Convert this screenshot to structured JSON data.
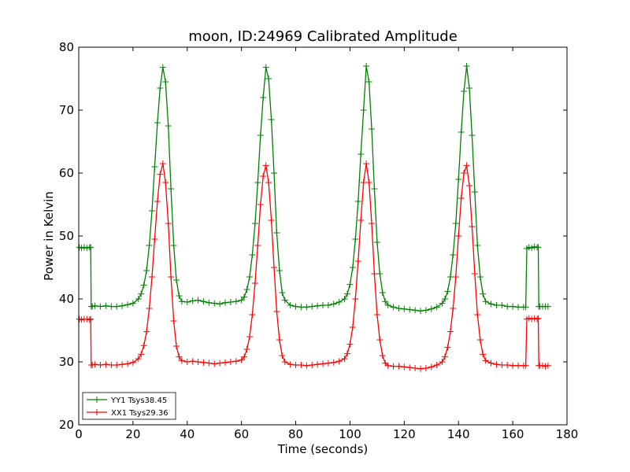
{
  "chart_data": {
    "type": "line",
    "title": "moon, ID:24969 Calibrated Amplitude",
    "xlabel": "Time (seconds)",
    "ylabel": "Power in Kelvin",
    "xlim": [
      0,
      180
    ],
    "ylim": [
      20,
      80
    ],
    "x_ticks": [
      "0",
      "20",
      "40",
      "60",
      "80",
      "100",
      "120",
      "140",
      "160",
      "180"
    ],
    "y_ticks": [
      "20",
      "30",
      "40",
      "50",
      "60",
      "70",
      "80"
    ],
    "grid": false,
    "legend_position": "lower-left",
    "marker": "plus",
    "series": [
      {
        "name": "YY1 Tsys38.45",
        "color": "#008000",
        "x": [
          0.2,
          1,
          2,
          3,
          4,
          4.4,
          4.6,
          5,
          6,
          8,
          10,
          12,
          14,
          16,
          18,
          20,
          22,
          23,
          24,
          25,
          26,
          27,
          28,
          29,
          30,
          31,
          32,
          33,
          34,
          35,
          36,
          37,
          38,
          40,
          42,
          44,
          46,
          48,
          50,
          52,
          54,
          56,
          58,
          60,
          61,
          62,
          63,
          64,
          65,
          66,
          67,
          68,
          69,
          70,
          71,
          72,
          73,
          74,
          75,
          76,
          78,
          80,
          82,
          84,
          86,
          88,
          90,
          92,
          94,
          96,
          98,
          99,
          100,
          101,
          102,
          103,
          104,
          105,
          106,
          107,
          108,
          109,
          110,
          111,
          112,
          113,
          114,
          116,
          118,
          120,
          122,
          124,
          126,
          128,
          130,
          132,
          134,
          135,
          136,
          137,
          138,
          139,
          140,
          141,
          142,
          143,
          144,
          145,
          146,
          147,
          148,
          149,
          150,
          152,
          154,
          156,
          158,
          160,
          162,
          164,
          164.8,
          165.2,
          166,
          167,
          168,
          169,
          169.4,
          169.6,
          170,
          171,
          172,
          173
        ],
        "values": [
          48.2,
          48.1,
          48.2,
          48.1,
          48.2,
          48.2,
          38.8,
          38.8,
          38.9,
          38.8,
          38.9,
          38.8,
          38.8,
          38.9,
          39.1,
          39.3,
          40.0,
          40.8,
          42.2,
          44.5,
          48.5,
          54.0,
          61.0,
          68.0,
          73.5,
          76.8,
          74.5,
          67.5,
          57.5,
          48.5,
          43.0,
          40.5,
          39.6,
          39.5,
          39.7,
          39.8,
          39.6,
          39.4,
          39.3,
          39.2,
          39.4,
          39.5,
          39.6,
          39.8,
          40.3,
          41.5,
          43.5,
          47.0,
          52.0,
          58.5,
          66.0,
          72.0,
          76.8,
          75.0,
          68.5,
          60.0,
          50.5,
          44.5,
          41.0,
          39.8,
          39.0,
          38.8,
          38.7,
          38.7,
          38.8,
          38.9,
          39.0,
          39.0,
          39.2,
          39.5,
          40.0,
          40.8,
          42.3,
          45.0,
          49.5,
          55.5,
          63.0,
          70.0,
          77.0,
          74.5,
          67.0,
          57.5,
          49.0,
          44.0,
          41.0,
          39.6,
          39.0,
          38.7,
          38.5,
          38.4,
          38.3,
          38.2,
          38.1,
          38.2,
          38.4,
          38.7,
          39.3,
          40.0,
          41.2,
          43.5,
          47.0,
          52.0,
          59.0,
          66.5,
          73.0,
          77.0,
          73.5,
          66.0,
          57.0,
          48.5,
          43.5,
          40.8,
          39.6,
          39.2,
          39.0,
          39.0,
          38.8,
          38.8,
          38.7,
          38.7,
          38.7,
          48.0,
          48.2,
          48.1,
          48.3,
          48.2,
          48.2,
          38.8,
          38.8,
          38.8,
          38.8,
          38.8
        ]
      },
      {
        "name": "XX1 Tsys29.36",
        "color": "#ff0000",
        "x": [
          0.2,
          1,
          2,
          3,
          4,
          4.4,
          4.6,
          5,
          6,
          8,
          10,
          12,
          14,
          16,
          18,
          20,
          22,
          23,
          24,
          25,
          26,
          27,
          28,
          29,
          30,
          31,
          32,
          33,
          34,
          35,
          36,
          37,
          38,
          40,
          42,
          44,
          46,
          48,
          50,
          52,
          54,
          56,
          58,
          60,
          61,
          62,
          63,
          64,
          65,
          66,
          67,
          68,
          69,
          70,
          71,
          72,
          73,
          74,
          75,
          76,
          78,
          80,
          82,
          84,
          86,
          88,
          90,
          92,
          94,
          96,
          98,
          99,
          100,
          101,
          102,
          103,
          104,
          105,
          106,
          107,
          108,
          109,
          110,
          111,
          112,
          113,
          114,
          116,
          118,
          120,
          122,
          124,
          126,
          128,
          130,
          132,
          134,
          135,
          136,
          137,
          138,
          139,
          140,
          141,
          142,
          143,
          144,
          145,
          146,
          147,
          148,
          149,
          150,
          152,
          154,
          156,
          158,
          160,
          162,
          164,
          164.8,
          165.2,
          166,
          167,
          168,
          169,
          169.4,
          169.6,
          170,
          171,
          172,
          173
        ],
        "values": [
          36.8,
          36.7,
          36.8,
          36.8,
          36.7,
          36.8,
          29.5,
          29.5,
          29.6,
          29.5,
          29.6,
          29.5,
          29.5,
          29.6,
          29.7,
          29.9,
          30.5,
          31.2,
          32.6,
          34.8,
          38.5,
          43.5,
          49.5,
          55.5,
          59.8,
          61.5,
          58.5,
          52.0,
          43.5,
          36.5,
          32.5,
          30.8,
          30.2,
          30.0,
          30.1,
          30.0,
          29.9,
          29.8,
          29.7,
          29.8,
          29.9,
          30.0,
          30.1,
          30.3,
          30.8,
          32.0,
          34.0,
          37.5,
          42.5,
          48.5,
          55.0,
          59.5,
          61.2,
          58.5,
          52.5,
          45.0,
          38.0,
          33.5,
          31.0,
          30.0,
          29.6,
          29.5,
          29.5,
          29.4,
          29.5,
          29.6,
          29.7,
          29.8,
          29.9,
          30.1,
          30.5,
          31.3,
          32.8,
          35.5,
          40.0,
          46.0,
          52.5,
          58.5,
          61.5,
          58.5,
          52.0,
          44.0,
          37.5,
          33.5,
          31.0,
          29.8,
          29.4,
          29.3,
          29.3,
          29.2,
          29.1,
          29.0,
          28.9,
          29.0,
          29.2,
          29.5,
          30.0,
          30.8,
          32.3,
          34.8,
          38.5,
          43.5,
          50.0,
          56.0,
          60.0,
          61.2,
          58.0,
          51.5,
          44.0,
          37.5,
          33.5,
          31.2,
          30.2,
          29.8,
          29.6,
          29.5,
          29.5,
          29.4,
          29.4,
          29.4,
          29.4,
          36.8,
          36.9,
          36.8,
          36.9,
          36.8,
          36.9,
          29.4,
          29.4,
          29.4,
          29.3,
          29.4
        ]
      }
    ]
  }
}
